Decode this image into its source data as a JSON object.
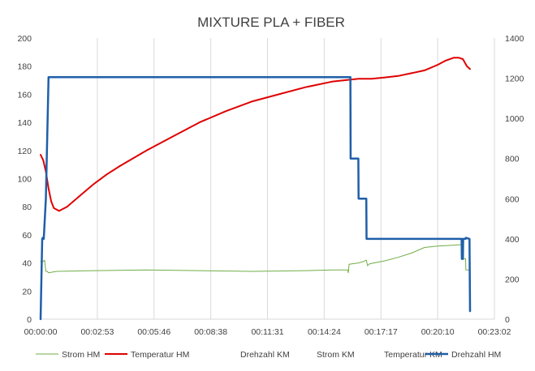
{
  "chart_data": {
    "type": "line",
    "title": "MIXTURE PLA + FIBER",
    "xlabel": "",
    "ylabel": "",
    "y_left_lim": [
      0,
      200
    ],
    "y_right_lim": [
      0,
      1400
    ],
    "x_ticks": [
      "00:00:00",
      "00:02:53",
      "00:05:46",
      "00:08:38",
      "00:11:31",
      "00:14:24",
      "00:17:17",
      "00:20:10",
      "00:23:02"
    ],
    "x_range_seconds": [
      0,
      1382
    ],
    "y_left_ticks": [
      "0",
      "20",
      "40",
      "60",
      "80",
      "100",
      "120",
      "140",
      "160",
      "180",
      "200"
    ],
    "y_right_ticks": [
      "0",
      "200",
      "400",
      "600",
      "800",
      "1000",
      "1200",
      "1400"
    ],
    "grid": "vertical",
    "legend_position": "bottom",
    "legend": [
      {
        "name": "Strom HM",
        "color": "#70ad47",
        "width": 1,
        "shown": true
      },
      {
        "name": "Temperatur HM",
        "color": "#e00000",
        "width": 2,
        "shown": true
      },
      {
        "name": "Drehzahl KM",
        "color": "#000000",
        "width": 0,
        "shown": false
      },
      {
        "name": "Strom KM",
        "color": "#000000",
        "width": 0,
        "shown": false
      },
      {
        "name": "Temperatur KM",
        "color": "#000000",
        "width": 0,
        "shown": false
      },
      {
        "name": "Drehzahl HM",
        "color": "#1f5fa8",
        "width": 2.5,
        "shown": true
      }
    ],
    "series": [
      {
        "name": "Strom HM",
        "axis": "left",
        "color": "#70ad47",
        "x": [
          0,
          10,
          15,
          20,
          25,
          30,
          60,
          200,
          400,
          600,
          800,
          1000,
          1100,
          1160,
          1162,
          1165,
          1200,
          1220,
          1230,
          1235,
          1240,
          1245,
          1300,
          1350,
          1400,
          1450,
          1500,
          1550,
          1590,
          1592,
          1600,
          1605,
          1606,
          1610,
          1622
        ],
        "y": [
          41,
          41,
          42,
          34,
          34,
          33,
          34,
          34.5,
          35,
          34.5,
          34,
          34.5,
          35,
          35,
          33,
          39,
          40,
          41,
          42,
          38,
          39,
          39.5,
          41.5,
          44,
          47,
          51,
          52,
          52.5,
          53,
          43,
          43,
          43,
          35,
          35,
          35
        ]
      },
      {
        "name": "Temperatur HM",
        "axis": "left",
        "color": "#e00000",
        "x": [
          0,
          10,
          20,
          30,
          40,
          50,
          70,
          100,
          150,
          200,
          250,
          300,
          400,
          500,
          600,
          700,
          800,
          900,
          1000,
          1100,
          1200,
          1250,
          1300,
          1350,
          1400,
          1450,
          1500,
          1530,
          1560,
          1580,
          1595,
          1610,
          1622
        ],
        "y": [
          117,
          113,
          105,
          93,
          84,
          79,
          77,
          80,
          88,
          96,
          103,
          109,
          120,
          130,
          140,
          148,
          155,
          160,
          165,
          169,
          171,
          171,
          172,
          173,
          175,
          177,
          181,
          184,
          186,
          186,
          185,
          180,
          178
        ]
      },
      {
        "name": "Drehzahl HM",
        "axis": "right",
        "color": "#1f5fa8",
        "x": [
          0,
          6,
          8,
          12,
          20,
          30,
          40,
          200,
          800,
          1150,
          1170,
          1171,
          1200,
          1201,
          1230,
          1231,
          1590,
          1591,
          1595,
          1596,
          1605,
          1606,
          1620,
          1622
        ],
        "y": [
          0,
          400,
          405,
          400,
          600,
          1205,
          1205,
          1205,
          1205,
          1205,
          1205,
          800,
          800,
          600,
          600,
          400,
          400,
          300,
          300,
          400,
          400,
          405,
          400,
          40
        ]
      }
    ]
  }
}
